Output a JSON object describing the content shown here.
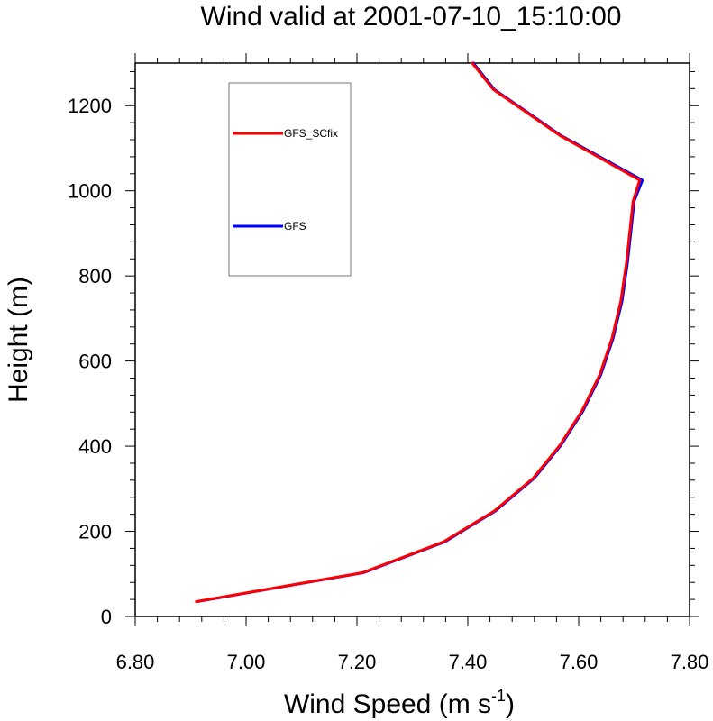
{
  "chart_data": {
    "type": "line",
    "title": "Wind valid at 2001-07-10_15:10:00",
    "xlabel": "Wind Speed (m s",
    "xlabel_sup": "-1",
    "xlabel_close": ")",
    "ylabel": "Height (m)",
    "xlim": [
      6.8,
      7.8
    ],
    "ylim": [
      0,
      1300
    ],
    "xticks": [
      6.8,
      7.0,
      7.2,
      7.4,
      7.6,
      7.8
    ],
    "xtick_labels": [
      "6.80",
      "7.00",
      "7.20",
      "7.40",
      "7.60",
      "7.80"
    ],
    "yticks": [
      0,
      200,
      400,
      600,
      800,
      1000,
      1200
    ],
    "ytick_labels": [
      "0",
      "200",
      "400",
      "600",
      "800",
      "1000",
      "1200"
    ],
    "grid": false,
    "legend_position": "top-left",
    "series": [
      {
        "name": "GFS",
        "color": "#0000ff",
        "points": [
          [
            6.912,
            35
          ],
          [
            7.212,
            103
          ],
          [
            7.358,
            175
          ],
          [
            7.45,
            248
          ],
          [
            7.52,
            325
          ],
          [
            7.568,
            402
          ],
          [
            7.608,
            483
          ],
          [
            7.64,
            568
          ],
          [
            7.662,
            653
          ],
          [
            7.678,
            740
          ],
          [
            7.688,
            830
          ],
          [
            7.696,
            925
          ],
          [
            7.7,
            975
          ],
          [
            7.715,
            1025
          ],
          [
            7.568,
            1130
          ],
          [
            7.448,
            1238
          ],
          [
            7.41,
            1300
          ]
        ]
      },
      {
        "name": "GFS_SCfix",
        "color": "#ff0000",
        "points": [
          [
            6.91,
            35
          ],
          [
            7.21,
            103
          ],
          [
            7.356,
            175
          ],
          [
            7.448,
            248
          ],
          [
            7.518,
            325
          ],
          [
            7.566,
            402
          ],
          [
            7.606,
            483
          ],
          [
            7.638,
            568
          ],
          [
            7.66,
            653
          ],
          [
            7.676,
            740
          ],
          [
            7.686,
            830
          ],
          [
            7.694,
            925
          ],
          [
            7.698,
            975
          ],
          [
            7.71,
            1025
          ],
          [
            7.566,
            1130
          ],
          [
            7.446,
            1238
          ],
          [
            7.408,
            1300
          ]
        ]
      }
    ]
  }
}
